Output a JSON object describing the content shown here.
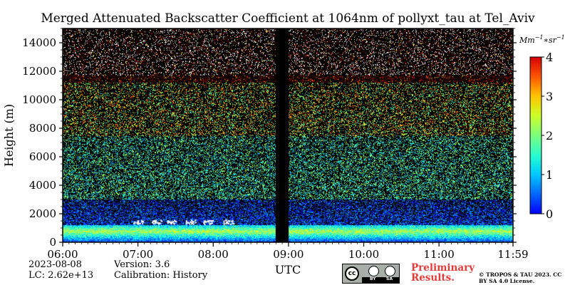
{
  "chart_data": {
    "type": "heatmap",
    "title": "Merged Attenuated Backscatter Coefficient at 1064nm of pollyxt_tau at Tel_Aviv",
    "xlabel": "UTC",
    "ylabel": "Height (m)",
    "x_tick_labels": [
      "06:00",
      "07:00",
      "08:00",
      "09:00",
      "10:00",
      "11:00",
      "11:59"
    ],
    "x_ticks_hours": [
      6.0,
      7.0,
      8.0,
      9.0,
      10.0,
      11.0,
      11.9833
    ],
    "xlim_hours": [
      6.0,
      11.9833
    ],
    "y_ticks": [
      0,
      2000,
      4000,
      6000,
      8000,
      10000,
      12000,
      14000
    ],
    "y_tick_labels": [
      "0",
      "2000",
      "4000",
      "6000",
      "8000",
      "10000",
      "12000",
      "14000"
    ],
    "ylim": [
      0,
      15000
    ],
    "colorbar": {
      "unit_label": "Mm",
      "unit_exponent": "−1",
      "unit_mid": "∗sr",
      "unit_exponent2": "−1",
      "ticks": [
        0,
        1,
        2,
        3,
        4
      ],
      "tick_labels": [
        "0",
        "1",
        "2",
        "3",
        "4"
      ],
      "range": [
        0,
        4
      ],
      "colormap": "jet"
    },
    "no_data_gap_hours": [
      8.83,
      9.0
    ],
    "boundary_layer_top_m": 1200,
    "background_color": "#000000"
  },
  "footer": {
    "date": "2023-08-08",
    "lc": "LC: 2.62e+13",
    "version": "Version: 3.6",
    "calibration": "Calibration: History",
    "preliminary": "Preliminary Results.",
    "copyright": "© TROPOS & TAU 2023. CC BY SA 4.0 License.",
    "license_badge": {
      "cc": "cc",
      "by": "BY",
      "sa": "SA"
    }
  }
}
